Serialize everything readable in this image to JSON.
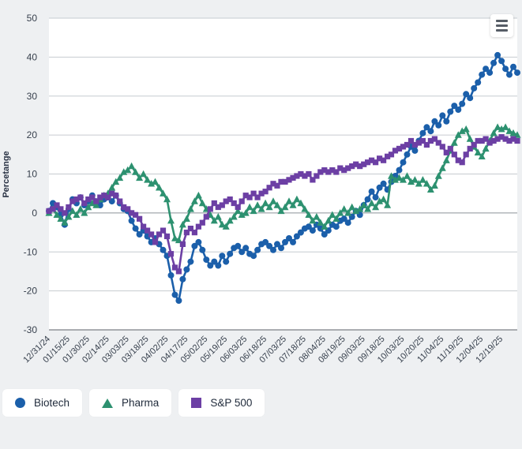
{
  "page": {
    "background": "#eef0f2"
  },
  "export_menu": {
    "icon": "hamburger-icon"
  },
  "chart_data": {
    "type": "line",
    "title": "",
    "xlabel": "",
    "ylabel": "Percetange",
    "ylim": [
      -30,
      50
    ],
    "yticks": [
      50,
      40,
      30,
      20,
      10,
      0,
      -10,
      -20,
      -30
    ],
    "grid": true,
    "legend_position": "bottom-left",
    "tick_every": 5,
    "x_labels": [
      "12/31/24",
      "01/15/25",
      "01/30/25",
      "02/14/25",
      "03/03/25",
      "03/18/25",
      "04/02/25",
      "04/17/25",
      "05/02/25",
      "05/19/25",
      "06/03/25",
      "06/18/25",
      "07/03/25",
      "07/18/25",
      "08/04/25",
      "08/19/25",
      "09/03/25",
      "09/18/25",
      "10/03/25",
      "10/20/25",
      "11/04/25",
      "11/19/25",
      "12/04/25",
      "12/19/25"
    ],
    "colors": {
      "background": "#eef0f2",
      "plot_bg": "#ffffff",
      "grid": "#c6cbd0",
      "zero_line": "#8a9097",
      "axis_line": "#5d6268",
      "tick_label": "#37404d",
      "axis_title": "#2a3345"
    },
    "series": [
      {
        "name": "Biotech",
        "marker": "circle",
        "color": "#1b5faa",
        "values": [
          0.5,
          2.5,
          1.5,
          -0.5,
          -3,
          1,
          3.5,
          2.5,
          4,
          2,
          3,
          4.5,
          3,
          2,
          3.5,
          4,
          3,
          4.5,
          2.5,
          1,
          0.5,
          -2,
          -4,
          -5.5,
          -4.5,
          -6,
          -7.5,
          -6.5,
          -8,
          -9.5,
          -11,
          -16,
          -21,
          -22.5,
          -17,
          -14.5,
          -12.5,
          -8.5,
          -7.5,
          -9.5,
          -12,
          -13.5,
          -12.5,
          -13.5,
          -11,
          -12.5,
          -10.5,
          -9,
          -8.5,
          -10,
          -9,
          -10.5,
          -11,
          -9.5,
          -8,
          -7.5,
          -8.5,
          -9.5,
          -8,
          -9,
          -7.5,
          -6.5,
          -7.5,
          -6,
          -5,
          -4,
          -3.5,
          -4.5,
          -3,
          -4,
          -5.5,
          -4.5,
          -3,
          -3.5,
          -2,
          -1.5,
          -2.5,
          -1,
          0.5,
          -0.5,
          2,
          3.5,
          5.5,
          4,
          6.5,
          7.5,
          6,
          8,
          9.5,
          11,
          13,
          15,
          17,
          16,
          18.5,
          20.5,
          22,
          21,
          23.5,
          22.5,
          25,
          23.5,
          26,
          27.5,
          26.5,
          28,
          30.5,
          29.5,
          32,
          33.5,
          35.5,
          37,
          36,
          38.5,
          40.5,
          39,
          37,
          35.5,
          37.5,
          36
        ]
      },
      {
        "name": "Pharma",
        "marker": "triangle",
        "color": "#2d9170",
        "values": [
          0,
          1,
          -0.5,
          -1.5,
          -2.5,
          -1,
          0.5,
          -0.5,
          1,
          0,
          1.5,
          2.5,
          2,
          3.5,
          4.5,
          5,
          6.5,
          8,
          9,
          10.5,
          11,
          12,
          10.5,
          9,
          10,
          8.5,
          7.5,
          8,
          6.5,
          5,
          3.5,
          -2,
          -6.5,
          -7,
          -3,
          -1.5,
          1,
          3,
          4.5,
          2.5,
          1,
          -0.5,
          -2,
          -1,
          -3,
          -3.5,
          -2,
          -1,
          0.5,
          -0.5,
          0,
          1.5,
          0.5,
          2,
          1,
          2.5,
          1.5,
          3,
          2,
          0.5,
          1.5,
          3,
          2,
          3.5,
          2.5,
          1,
          -0.5,
          -2,
          -1,
          -2.5,
          -3.5,
          -2,
          -0.5,
          -1.5,
          0,
          1,
          0,
          1.5,
          0.5,
          1,
          2,
          1,
          2.5,
          1.5,
          3,
          3.5,
          2,
          9.5,
          8.5,
          9,
          8.5,
          9.5,
          8,
          8.5,
          7.5,
          8.5,
          7.5,
          6,
          7,
          9.5,
          11.5,
          13.5,
          16,
          18,
          20,
          21,
          21.5,
          19,
          17,
          15.5,
          14.5,
          16.5,
          18.5,
          20.5,
          22,
          21.5,
          22,
          21,
          20.5,
          20
        ]
      },
      {
        "name": "S&P 500",
        "marker": "square",
        "color": "#6c3fa4",
        "values": [
          0.5,
          1,
          2,
          1,
          0,
          1.5,
          3,
          3.5,
          4,
          2.5,
          3.5,
          4,
          3,
          4,
          4.5,
          4,
          5,
          4.5,
          3,
          1.5,
          1,
          0,
          -0.5,
          -1.5,
          -3.5,
          -4.5,
          -5.5,
          -7.5,
          -5.5,
          -4.5,
          -6,
          -10.5,
          -14,
          -15,
          -8,
          -5,
          -4,
          -5,
          -3.5,
          -2.5,
          -1,
          1,
          2.5,
          1.5,
          2,
          3,
          3.5,
          2.5,
          1.5,
          3,
          4.5,
          4,
          5,
          4,
          5,
          5.5,
          6.5,
          7.5,
          7,
          8,
          8,
          8.5,
          9,
          9.5,
          10,
          9.5,
          10,
          8.5,
          9.5,
          10.5,
          11,
          10.5,
          11,
          10.5,
          11.5,
          11,
          11.5,
          12,
          12.5,
          12,
          12.5,
          13,
          13.5,
          13,
          14,
          13.5,
          14.5,
          15,
          16,
          16.5,
          17,
          17.5,
          18.5,
          17.5,
          18,
          18.5,
          17.5,
          18.5,
          19,
          18,
          17,
          15.5,
          16.5,
          15,
          13.5,
          13,
          15,
          16.5,
          17.5,
          18.5,
          18.5,
          19,
          18,
          18.5,
          19,
          19.5,
          19,
          18.5,
          19,
          18.5
        ]
      }
    ]
  }
}
